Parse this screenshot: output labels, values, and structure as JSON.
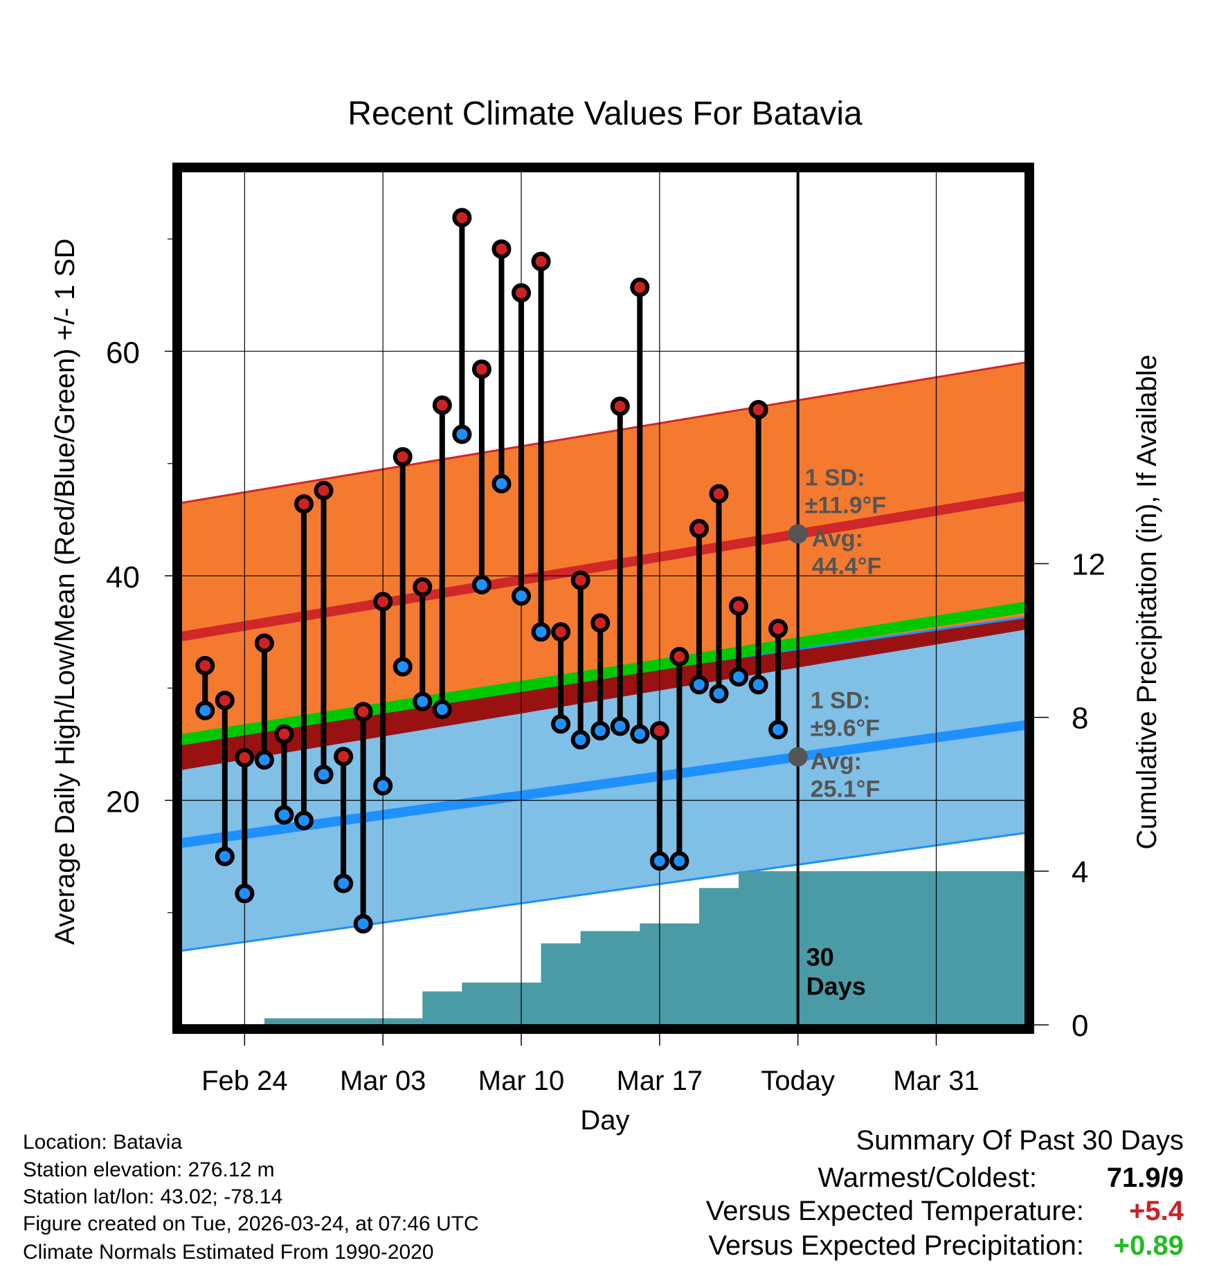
{
  "chart_data": {
    "type": "line",
    "title": "Recent Climate Values For Batavia",
    "xlabel": "Day",
    "ylabel": "Average Daily High/Low/Mean (Red/Blue/Green) +/- 1 SD",
    "y2label": "Cumulative Precipitation (in), If Available",
    "x_range_days": [
      -31.2,
      11.5
    ],
    "ylim": [
      0,
      76
    ],
    "y_ticks": [
      20,
      40,
      60
    ],
    "y_minor_ticks": [
      10,
      30,
      50,
      70
    ],
    "y2lim": [
      0,
      22.2
    ],
    "y2_ticks": [
      0,
      4,
      8,
      12
    ],
    "x_ticks": [
      {
        "day": -28,
        "label": "Feb 24"
      },
      {
        "day": -21,
        "label": "Mar 03"
      },
      {
        "day": -14,
        "label": "Mar 10"
      },
      {
        "day": -7,
        "label": "Mar 17"
      },
      {
        "day": 0,
        "label": "Today"
      },
      {
        "day": 7,
        "label": "Mar 31"
      }
    ],
    "normals": {
      "days": [
        -31.2,
        11.5
      ],
      "high_avg": [
        34.6,
        47.1
      ],
      "high_sd": 11.9,
      "low_avg": [
        16.2,
        26.7
      ],
      "low_sd": 9.6,
      "mean_avg": [
        25.4,
        37.2
      ]
    },
    "daily": {
      "days": [
        -30,
        -29,
        -28,
        -27,
        -26,
        -25,
        -24,
        -23,
        -22,
        -21,
        -20,
        -19,
        -18,
        -17,
        -16,
        -15,
        -14,
        -13,
        -12,
        -11,
        -10,
        -9,
        -8,
        -7,
        -6,
        -5,
        -4,
        -3,
        -2,
        -1
      ],
      "high": [
        32.0,
        28.9,
        23.8,
        34.0,
        25.9,
        46.4,
        47.6,
        23.9,
        27.9,
        37.7,
        50.6,
        39.0,
        55.2,
        71.9,
        58.4,
        69.1,
        65.2,
        68.0,
        35.0,
        39.6,
        35.8,
        55.1,
        65.7,
        26.2,
        32.8,
        44.2,
        47.3,
        37.3,
        54.8,
        35.3
      ],
      "low": [
        28.0,
        15.0,
        11.7,
        23.6,
        18.7,
        18.2,
        22.3,
        12.6,
        9.0,
        21.3,
        31.9,
        28.8,
        28.1,
        52.6,
        39.2,
        48.2,
        38.2,
        35.0,
        26.8,
        25.4,
        26.2,
        26.6,
        25.9,
        14.6,
        14.6,
        30.3,
        29.5,
        31.0,
        30.3,
        26.3
      ]
    },
    "precip_cumulative": {
      "days": [
        -30,
        -29,
        -28,
        -27,
        -26,
        -25,
        -24,
        -23,
        -22,
        -21,
        -20,
        -19,
        -18,
        -17,
        -16,
        -15,
        -14,
        -13,
        -12,
        -11,
        -10,
        -9,
        -8,
        -7,
        -6,
        -5,
        -4,
        -3,
        -2,
        -1,
        0,
        11.5
      ],
      "values": [
        0,
        0,
        0,
        0.17,
        0.17,
        0.17,
        0.17,
        0.17,
        0.17,
        0.17,
        0.17,
        0.87,
        0.87,
        1.1,
        1.1,
        1.1,
        1.1,
        2.12,
        2.12,
        2.44,
        2.44,
        2.44,
        2.64,
        2.64,
        2.64,
        3.56,
        3.56,
        4.0,
        4.0,
        4.0,
        4.0,
        4.0
      ]
    },
    "today_day": 0,
    "annotations": {
      "high_sd_label": "1 SD:",
      "high_sd_value": "±11.9°F",
      "high_avg_label": "Avg:",
      "high_avg_value": "44.4°F",
      "low_sd_label": "1 SD:",
      "low_sd_value": "±9.6°F",
      "low_avg_label": "Avg:",
      "low_avg_value": "25.1°F",
      "period_count": "30",
      "period_unit": "Days"
    },
    "colors": {
      "high_band": "#f47a30",
      "high_line": "#d02828",
      "low_band": "#80bfe6",
      "low_line": "#1e90ff",
      "overlap_band": "#991111",
      "mean_line": "#00c800",
      "precip": "#4a9ba5",
      "high_dot": "#cc2222",
      "low_dot": "#1e90ff",
      "annotation": "#555555"
    }
  },
  "footer": {
    "location": "Location: Batavia",
    "elevation": "Station elevation: 276.12 m",
    "latlon": "Station lat/lon: 43.02; -78.14",
    "created": "Figure created on Tue, 2026-03-24, at 07:46 UTC",
    "normals": "Climate Normals Estimated From 1990-2020"
  },
  "summary": {
    "title": "Summary Of Past 30 Days",
    "warm_cold_label": "Warmest/Coldest:",
    "warm_cold_value": "71.9/9",
    "temp_label": "Versus Expected Temperature:",
    "temp_value": "+5.4",
    "temp_color": "#cc2222",
    "precip_label": "Versus Expected Precipitation:",
    "precip_value": "+0.89",
    "precip_color": "#22bb22"
  }
}
